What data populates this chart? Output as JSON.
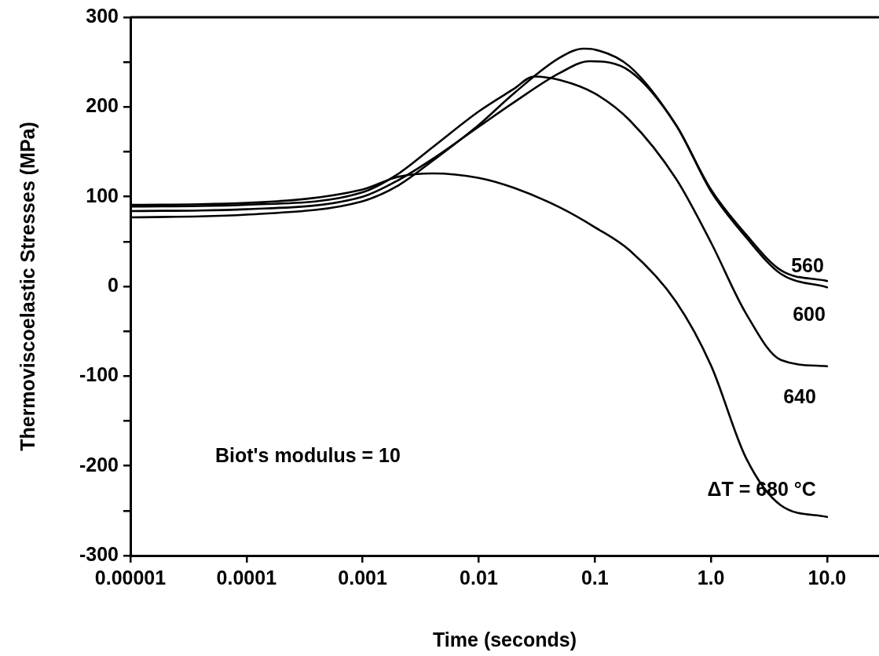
{
  "chart_data": {
    "type": "line",
    "xlabel": "Time (seconds)",
    "ylabel": "Thermoviscoelastic Stresses (MPa)",
    "log": "x",
    "grid": false,
    "legend": false,
    "marker": "none",
    "line_style": "solid",
    "xlim": [
      1e-05,
      28
    ],
    "ylim": [
      -300,
      300
    ],
    "xticks": [
      {
        "value": 1e-05,
        "label": "0.00001"
      },
      0.0001,
      0.001,
      0.01,
      0.1,
      {
        "value": 1,
        "label": "1.0"
      },
      {
        "value": 10,
        "label": "10.0"
      }
    ],
    "yticks": [
      -300,
      {
        "value": -250,
        "label": null
      },
      -200,
      {
        "value": -150,
        "label": null
      },
      -100,
      {
        "value": -50,
        "label": null
      },
      0,
      {
        "value": 50,
        "label": null
      },
      100,
      {
        "value": 150,
        "label": null
      },
      200,
      {
        "value": 250,
        "label": null
      },
      300
    ],
    "annotations": [
      "Biot's modulus = 10"
    ],
    "series": [
      {
        "name": "560",
        "color": "#000000",
        "x": [
          1e-05,
          0.0001,
          0.001,
          0.002,
          0.004,
          0.01,
          0.02,
          0.05,
          0.08,
          0.1,
          0.2,
          0.5,
          1,
          2,
          4,
          10
        ],
        "values": [
          77,
          80,
          95,
          112,
          140,
          180,
          215,
          255,
          265,
          264,
          245,
          180,
          108,
          58,
          18,
          6
        ]
      },
      {
        "name": "600",
        "color": "#000000",
        "x": [
          1e-05,
          0.0001,
          0.001,
          0.002,
          0.004,
          0.01,
          0.02,
          0.05,
          0.09,
          0.2,
          0.5,
          1,
          2,
          4,
          10
        ],
        "values": [
          84,
          86,
          100,
          118,
          142,
          178,
          205,
          238,
          251,
          240,
          180,
          106,
          55,
          14,
          -1
        ]
      },
      {
        "name": "640",
        "color": "#000000",
        "x": [
          1e-05,
          0.0001,
          0.001,
          0.002,
          0.004,
          0.01,
          0.02,
          0.03,
          0.05,
          0.1,
          0.2,
          0.5,
          1,
          2,
          4,
          10
        ],
        "values": [
          89,
          91,
          105,
          125,
          155,
          195,
          220,
          234,
          230,
          215,
          185,
          120,
          49,
          -30,
          -82,
          -89
        ]
      },
      {
        "name": "ΔT = 680 °C",
        "color": "#000000",
        "x": [
          1e-05,
          0.0001,
          0.001,
          0.002,
          0.004,
          0.01,
          0.02,
          0.05,
          0.1,
          0.2,
          0.5,
          1,
          2,
          4,
          10
        ],
        "values": [
          91,
          93,
          108,
          122,
          126,
          121,
          110,
          88,
          66,
          40,
          -17,
          -88,
          -191,
          -244,
          -257
        ]
      }
    ]
  }
}
